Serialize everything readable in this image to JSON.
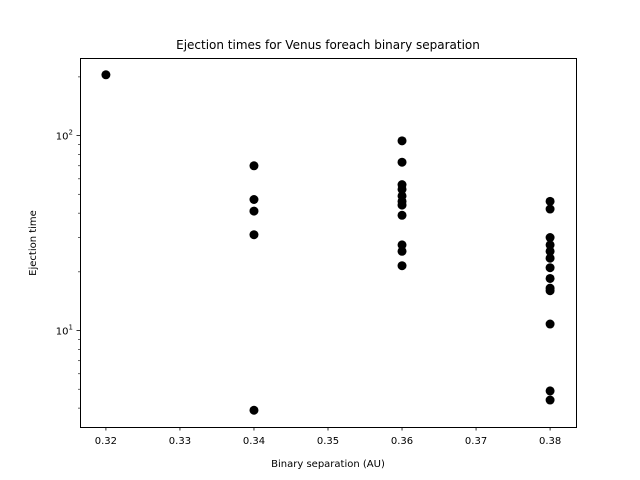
{
  "chart_data": {
    "type": "scatter",
    "title": "Ejection times for Venus foreach binary separation",
    "xlabel": "Binary separation (AU)",
    "ylabel": "Ejection time",
    "xlim": [
      0.3165,
      0.3835
    ],
    "ylim": [
      3.2,
      250
    ],
    "yscale": "log",
    "x_ticks": [
      "0.32",
      "0.33",
      "0.34",
      "0.35",
      "0.36",
      "0.37",
      "0.38"
    ],
    "x_tick_values": [
      0.32,
      0.33,
      0.34,
      0.35,
      0.36,
      0.37,
      0.38
    ],
    "y_ticks": [
      {
        "value": 10,
        "base": "10",
        "exp": "1"
      },
      {
        "value": 100,
        "base": "10",
        "exp": "2"
      }
    ],
    "grid": false,
    "marker_color": "#000000",
    "points": [
      {
        "x": 0.32,
        "y": 205
      },
      {
        "x": 0.34,
        "y": 70
      },
      {
        "x": 0.34,
        "y": 47
      },
      {
        "x": 0.34,
        "y": 41
      },
      {
        "x": 0.34,
        "y": 31
      },
      {
        "x": 0.34,
        "y": 3.9
      },
      {
        "x": 0.36,
        "y": 94
      },
      {
        "x": 0.36,
        "y": 73
      },
      {
        "x": 0.36,
        "y": 56
      },
      {
        "x": 0.36,
        "y": 53
      },
      {
        "x": 0.36,
        "y": 49
      },
      {
        "x": 0.36,
        "y": 46
      },
      {
        "x": 0.36,
        "y": 44
      },
      {
        "x": 0.36,
        "y": 39
      },
      {
        "x": 0.36,
        "y": 27.5
      },
      {
        "x": 0.36,
        "y": 25.5
      },
      {
        "x": 0.36,
        "y": 21.5
      },
      {
        "x": 0.38,
        "y": 46
      },
      {
        "x": 0.38,
        "y": 42
      },
      {
        "x": 0.38,
        "y": 30
      },
      {
        "x": 0.38,
        "y": 27.5
      },
      {
        "x": 0.38,
        "y": 25.5
      },
      {
        "x": 0.38,
        "y": 23.5
      },
      {
        "x": 0.38,
        "y": 21
      },
      {
        "x": 0.38,
        "y": 18.5
      },
      {
        "x": 0.38,
        "y": 16.5
      },
      {
        "x": 0.38,
        "y": 16
      },
      {
        "x": 0.38,
        "y": 10.8
      },
      {
        "x": 0.38,
        "y": 4.9
      },
      {
        "x": 0.38,
        "y": 4.4
      }
    ]
  }
}
